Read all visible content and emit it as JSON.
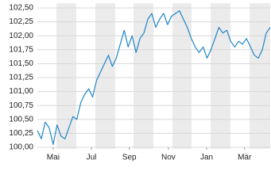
{
  "chart_data": {
    "type": "line",
    "series": [
      {
        "color": "#1f86c8",
        "values": [
          100.3,
          100.15,
          100.45,
          100.35,
          100.05,
          100.4,
          100.2,
          100.15,
          100.35,
          100.55,
          100.5,
          100.8,
          100.95,
          101.05,
          100.9,
          101.2,
          101.35,
          101.5,
          101.65,
          101.45,
          101.6,
          101.85,
          102.1,
          101.8,
          102.0,
          101.7,
          101.95,
          102.05,
          102.3,
          102.4,
          102.15,
          102.3,
          102.4,
          102.2,
          102.35,
          102.4,
          102.45,
          102.3,
          102.15,
          101.95,
          101.8,
          101.7,
          101.8,
          101.6,
          101.75,
          101.95,
          102.15,
          102.05,
          102.1,
          101.9,
          101.8,
          101.9,
          101.85,
          101.95,
          101.8,
          101.65,
          101.6,
          101.75,
          102.05,
          102.15
        ]
      }
    ],
    "xlim": [
      0,
      59
    ],
    "xticks": [
      {
        "value": 4,
        "label": "Mai"
      },
      {
        "value": 13.7,
        "label": "Jul"
      },
      {
        "value": 23.3,
        "label": "Sep"
      },
      {
        "value": 33.2,
        "label": "Nov"
      },
      {
        "value": 42.9,
        "label": "Jan"
      },
      {
        "value": 52.5,
        "label": "Mär"
      }
    ],
    "ylim": [
      100,
      102.5
    ],
    "yticks": [
      {
        "value": 100,
        "label": "100,00"
      },
      {
        "value": 100.25,
        "label": "100,25"
      },
      {
        "value": 100.5,
        "label": "100,50"
      },
      {
        "value": 100.75,
        "label": "100,75"
      },
      {
        "value": 101,
        "label": "101,00"
      },
      {
        "value": 101.25,
        "label": "101,25"
      },
      {
        "value": 101.5,
        "label": "101,50"
      },
      {
        "value": 101.75,
        "label": "101,75"
      },
      {
        "value": 102,
        "label": "102,00"
      },
      {
        "value": 102.25,
        "label": "102,25"
      },
      {
        "value": 102.5,
        "label": "102,50"
      }
    ],
    "grid": true
  }
}
